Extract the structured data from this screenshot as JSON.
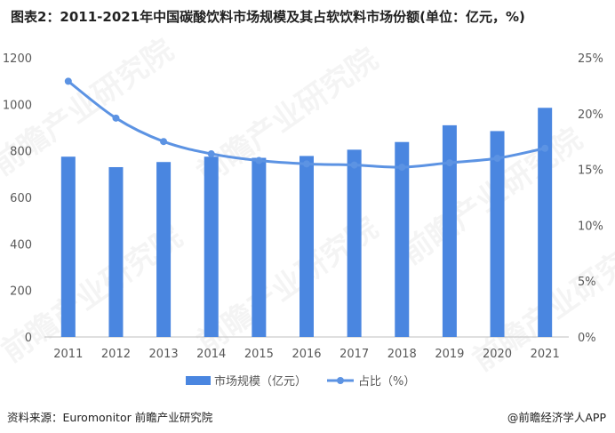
{
  "title": "图表2：2011-2021年中国碳酸饮料市场规模及其占软饮料市场份额(单位：亿元，%)",
  "footer": {
    "source": "资料来源：Euromonitor 前瞻产业研究院",
    "brand": "@前瞻经济学人APP"
  },
  "watermark": "前瞻产业研究院",
  "colors": {
    "bar": "#4a86e0",
    "line": "#5c93e3",
    "axis": "#bfbfbf",
    "text": "#595959"
  },
  "chart_data": {
    "type": "bar",
    "categories": [
      "2011",
      "2012",
      "2013",
      "2014",
      "2015",
      "2016",
      "2017",
      "2018",
      "2019",
      "2020",
      "2021"
    ],
    "series": [
      {
        "name": "市场规模（亿元）",
        "type": "bar",
        "axis": "left",
        "values": [
          775,
          730,
          752,
          775,
          770,
          778,
          805,
          838,
          910,
          885,
          985
        ]
      },
      {
        "name": "占比（%）",
        "type": "line",
        "axis": "right",
        "values": [
          22.9,
          19.6,
          17.5,
          16.4,
          15.8,
          15.5,
          15.4,
          15.2,
          15.6,
          16.0,
          16.9
        ]
      }
    ],
    "y_left": {
      "lim": [
        0,
        1200
      ],
      "ticks": [
        "0",
        "200",
        "400",
        "600",
        "800",
        "1000",
        "1200"
      ]
    },
    "y_right": {
      "lim": [
        0,
        25
      ],
      "ticks": [
        "0%",
        "5%",
        "10%",
        "15%",
        "20%",
        "25%"
      ]
    },
    "legend_position": "bottom",
    "grid": false
  }
}
